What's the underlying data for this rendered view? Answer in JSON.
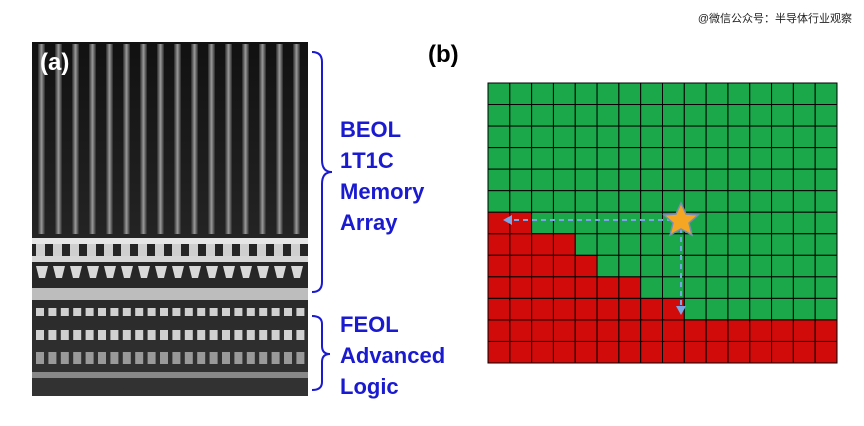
{
  "watermark": "@微信公众号：半导体行业观察",
  "panel_a": {
    "label": "(a)",
    "beol_lines": [
      "BEOL",
      "1T1C",
      "Memory",
      "Array"
    ],
    "feol_lines": [
      "FEOL",
      "Advanced",
      "Logic"
    ]
  },
  "panel_b": {
    "label": "(b)",
    "grid": {
      "columns": 16,
      "rows": 13,
      "pass_color": "#1aa84a",
      "fail_color": "#d10a0a",
      "fail_rows": [
        7,
        7,
        6,
        6,
        5,
        4,
        4,
        3,
        3,
        2,
        2,
        2,
        2,
        2,
        2,
        2
      ]
    }
  }
}
